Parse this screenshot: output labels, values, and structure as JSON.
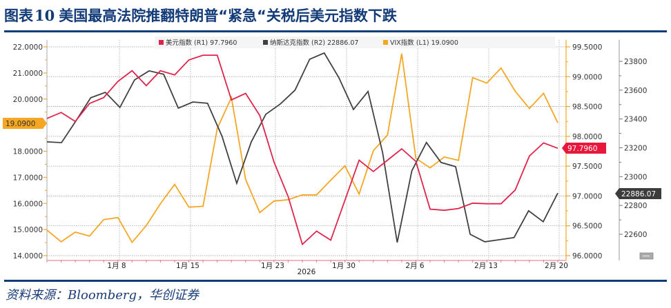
{
  "header": {
    "figure_label": "图表",
    "figure_number": "10",
    "title": "美国最高法院推翻特朗普“紧急“关税后美元指数下跌"
  },
  "footer": {
    "source": "资料来源：Bloomberg，华创证券"
  },
  "legend": [
    {
      "label": "美元指数 (R1) 97.7960",
      "color": "#e0234a"
    },
    {
      "label": "纳斯达克指数 (R2) 22886.07",
      "color": "#404040"
    },
    {
      "label": "VIX指数 (L1) 19.0900",
      "color": "#f5a623"
    }
  ],
  "badges": {
    "vix_last": "19.0900",
    "dxy_last": "97.7960",
    "nasdaq_last": "22886.07"
  },
  "colors": {
    "dxy": "#e0234a",
    "nasdaq": "#404040",
    "vix": "#f5a623",
    "title": "#123b78",
    "rule": "#0d3c77"
  },
  "axes": {
    "left_ticks": [
      "22.0000",
      "21.0000",
      "20.0000",
      "18.0000",
      "17.0000",
      "16.0000",
      "15.0000",
      "14.0000"
    ],
    "r1_ticks": [
      "99.5000",
      "99.0000",
      "98.5000",
      "98.0000",
      "97.5000",
      "97.0000",
      "96.5000",
      "96.0000"
    ],
    "r2_ticks": [
      "23800",
      "23600",
      "23400",
      "23200",
      "23000",
      "22800",
      "22600"
    ],
    "x_ticks": [
      "1月 8",
      "1月 15",
      "1月 23",
      "1月 30",
      "2月 6",
      "2月 13",
      "2月 20"
    ],
    "x_year": "2026"
  },
  "chart_data": {
    "type": "line",
    "title": "美国最高法院推翻特朗普“紧急“关税后美元指数下跌",
    "xlabel": "2026",
    "x_tick_labels": [
      "1月 8",
      "1月 15",
      "1月 23",
      "1月 30",
      "2月 6",
      "2月 13",
      "2月 20"
    ],
    "axes": {
      "L1": {
        "label": "VIX指数",
        "range": [
          14.0,
          22.0
        ]
      },
      "R1": {
        "label": "美元指数",
        "range": [
          96.0,
          99.5
        ]
      },
      "R2": {
        "label": "纳斯达克指数",
        "range": [
          22500,
          23900
        ]
      }
    },
    "legend_position": "top",
    "grid": true,
    "series": [
      {
        "name": "美元指数 (R1)",
        "axis": "R1",
        "last": 97.796,
        "values": [
          98.3,
          98.4,
          98.25,
          98.55,
          98.65,
          98.92,
          99.1,
          98.85,
          99.1,
          99.03,
          99.28,
          99.36,
          99.36,
          98.61,
          98.72,
          98.35,
          97.57,
          96.99,
          96.19,
          96.41,
          96.26,
          96.93,
          97.6,
          97.41,
          97.6,
          97.79,
          97.58,
          96.78,
          96.76,
          96.79,
          96.88,
          96.87,
          96.87,
          97.1,
          97.67,
          97.89,
          97.8
        ]
      },
      {
        "name": "纳斯达克指数 (R2)",
        "axis": "R2",
        "last": 22886.07,
        "values": [
          23241,
          23236,
          23389,
          23547,
          23585,
          23480,
          23671,
          23734,
          23710,
          23475,
          23518,
          23509,
          23279,
          22954,
          23241,
          23433,
          23505,
          23600,
          23815,
          23858,
          23686,
          23466,
          23591,
          23165,
          22543,
          23041,
          23237,
          23098,
          23069,
          22600,
          22548,
          22562,
          22577,
          22763,
          22687,
          22886
        ]
      },
      {
        "name": "VIX指数 (L1)",
        "axis": "L1",
        "last": 19.09,
        "values": [
          14.98,
          14.53,
          14.9,
          14.75,
          15.38,
          15.46,
          14.51,
          15.15,
          15.99,
          16.73,
          15.86,
          15.89,
          18.87,
          20.06,
          16.92,
          15.65,
          16.09,
          16.14,
          16.33,
          16.33,
          16.89,
          17.44,
          16.36,
          18.02,
          18.62,
          21.74,
          17.73,
          17.36,
          17.78,
          17.65,
          20.82,
          20.61,
          21.19,
          20.3,
          19.64,
          20.22,
          19.09
        ]
      }
    ]
  }
}
